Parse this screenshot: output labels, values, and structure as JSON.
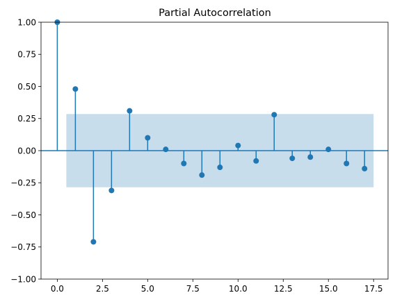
{
  "chart_data": {
    "type": "stem",
    "title": "Partial Autocorrelation",
    "xlabel": "",
    "ylabel": "",
    "xlim": [
      -0.9,
      18.3
    ],
    "ylim": [
      -1.0,
      1.0
    ],
    "x_ticks": [
      0.0,
      2.5,
      5.0,
      7.5,
      10.0,
      12.5,
      15.0,
      17.5
    ],
    "x_tick_labels": [
      "0.0",
      "2.5",
      "5.0",
      "7.5",
      "10.0",
      "12.5",
      "15.0",
      "17.5"
    ],
    "y_ticks": [
      -1.0,
      -0.75,
      -0.5,
      -0.25,
      0.0,
      0.25,
      0.5,
      0.75,
      1.0
    ],
    "y_tick_labels": [
      "−1.00",
      "−0.75",
      "−0.50",
      "−0.25",
      "0.00",
      "0.25",
      "0.50",
      "0.75",
      "1.00"
    ],
    "lags": [
      0,
      1,
      2,
      3,
      4,
      5,
      6,
      7,
      8,
      9,
      10,
      11,
      12,
      13,
      14,
      15,
      16,
      17
    ],
    "values": [
      1.0,
      0.48,
      -0.71,
      -0.31,
      0.31,
      0.1,
      0.01,
      -0.1,
      -0.19,
      -0.13,
      0.04,
      -0.08,
      0.28,
      -0.06,
      -0.05,
      0.01,
      -0.1,
      -0.14
    ],
    "confidence_band": {
      "x_range": [
        0.5,
        17.5
      ],
      "upper": 0.285,
      "lower": -0.285
    },
    "grid": false,
    "colors": {
      "stem": "#1f77b4",
      "band": "#1f77b4",
      "band_opacity": 0.25
    }
  }
}
